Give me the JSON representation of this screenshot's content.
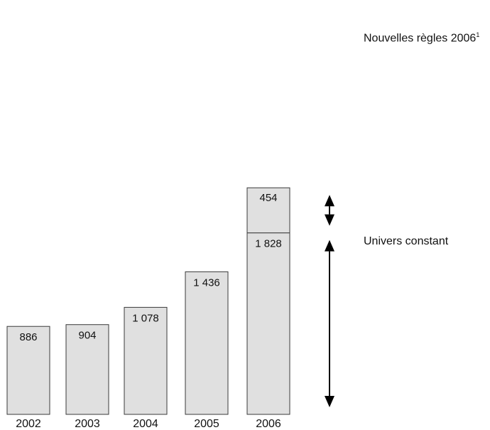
{
  "chart_data": {
    "type": "bar",
    "stacked": true,
    "categories": [
      "2002",
      "2003",
      "2004",
      "2005",
      "2006"
    ],
    "series": [
      {
        "name": "Univers constant",
        "values": [
          886,
          904,
          1078,
          1436,
          1828
        ]
      },
      {
        "name": "Nouvelles règles 2006",
        "values": [
          0,
          0,
          0,
          0,
          454
        ]
      }
    ],
    "data_labels": {
      "base": [
        "886",
        "904",
        "1 078",
        "1 436",
        "1 828"
      ],
      "top": [
        "",
        "",
        "",
        "",
        "454"
      ]
    },
    "annotations": {
      "new_rules": {
        "text": "Nouvelles règles 2006",
        "footnote": "1"
      },
      "constant": {
        "text": "Univers constant"
      }
    },
    "colors": {
      "bar_fill": "#e0e0e0",
      "bar_stroke": "#3a3a3a",
      "arrow": "#000000"
    },
    "grid": false,
    "axes_visible": false,
    "title": "",
    "xlabel": "",
    "ylabel": ""
  }
}
